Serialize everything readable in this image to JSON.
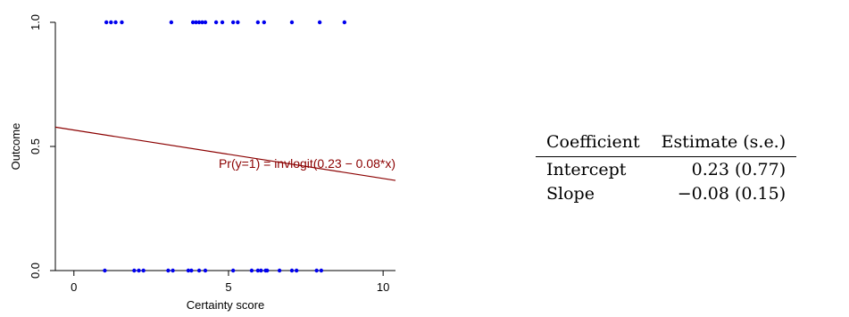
{
  "chart_data": {
    "type": "scatter",
    "title": "",
    "xlabel": "Certainty score",
    "ylabel": "Outcome",
    "xlim": [
      -0.6,
      10.4
    ],
    "ylim": [
      0,
      1
    ],
    "x_ticks": [
      {
        "value": 0,
        "label": "0"
      },
      {
        "value": 5,
        "label": "5"
      },
      {
        "value": 10,
        "label": "10"
      }
    ],
    "y_ticks": [
      {
        "value": 0,
        "label": "0.0"
      },
      {
        "value": 0.5,
        "label": "0.5"
      },
      {
        "value": 1,
        "label": "1.0"
      }
    ],
    "grid": false,
    "point_color": "#0000ee",
    "fit_color": "#8b0000",
    "fit": {
      "intercept": 0.566,
      "slope": -0.0195,
      "label": "Pr(y=1) = invlogit(0.23 − 0.08*x)"
    },
    "series": [
      {
        "y": 1,
        "x": [
          1.05,
          1.2,
          1.35,
          1.55,
          3.15,
          3.85,
          3.95,
          4.05,
          4.15,
          4.25,
          4.6,
          4.8,
          5.15,
          5.3,
          5.95,
          6.15,
          7.05,
          7.95,
          8.75
        ]
      },
      {
        "y": 0,
        "x": [
          1.0,
          1.95,
          2.1,
          2.25,
          3.05,
          3.2,
          3.7,
          3.8,
          4.05,
          4.25,
          5.15,
          5.75,
          5.95,
          6.05,
          6.2,
          6.25,
          6.65,
          7.05,
          7.2,
          7.85,
          8.0
        ]
      }
    ]
  },
  "table": {
    "headers": [
      "Coefficient",
      "Estimate (s.e.)"
    ],
    "rows": [
      {
        "name": "Intercept",
        "estimate": "0.23 (0.77)"
      },
      {
        "name": "Slope",
        "estimate": "−0.08 (0.15)"
      }
    ]
  }
}
